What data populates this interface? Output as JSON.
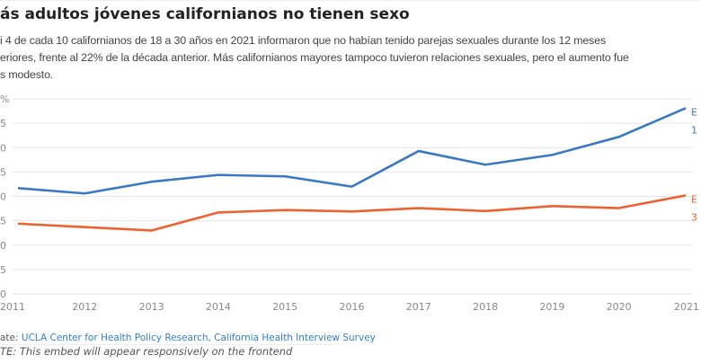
{
  "header": {
    "title": "ás adultos jóvenes californianos no tienen sexo",
    "description_lines": [
      "i 4 de cada 10 californianos de 18 a 30 años en 2021 informaron que no habían tenido parejas sexuales durante los 12 meses",
      "eriores, frente al 22% de la década anterior. Más californianos mayores tampoco tuvieron relaciones sexuales, pero el aumento fue",
      "s modesto."
    ]
  },
  "chart_data": {
    "type": "line",
    "title": "ás adultos jóvenes californianos no tienen sexo",
    "x": [
      2011,
      2012,
      2013,
      2014,
      2015,
      2016,
      2017,
      2018,
      2019,
      2020,
      2021
    ],
    "x_tick_labels": [
      "2011",
      "2012",
      "2013",
      "2014",
      "2015",
      "2016",
      "2017",
      "2018",
      "2019",
      "2020",
      "2021"
    ],
    "y_ticks": [
      0,
      5,
      10,
      15,
      20,
      25,
      30,
      35,
      40
    ],
    "y_tick_labels_visible": [
      "0",
      "5",
      "0",
      "5",
      "0",
      "5",
      "0",
      "5",
      "%"
    ],
    "ylim": [
      0,
      40
    ],
    "grid": true,
    "series": [
      {
        "label_lines": [
          "E",
          "1"
        ],
        "color": "#3b78c3",
        "values": [
          21.7,
          20.6,
          23.0,
          24.4,
          24.1,
          22.0,
          29.3,
          26.5,
          28.5,
          32.2,
          38.1
        ]
      },
      {
        "label_lines": [
          "E",
          "3"
        ],
        "color": "#ee6130",
        "values": [
          14.4,
          13.7,
          13.0,
          16.7,
          17.2,
          16.9,
          17.6,
          17.0,
          18.0,
          17.6,
          20.2
        ]
      }
    ]
  },
  "footer": {
    "source_prefix": "ate: ",
    "source_link": "UCLA Center for Health Policy Research, California Health Interview Survey",
    "note": "TE: This embed will appear responsively on the frontend"
  }
}
